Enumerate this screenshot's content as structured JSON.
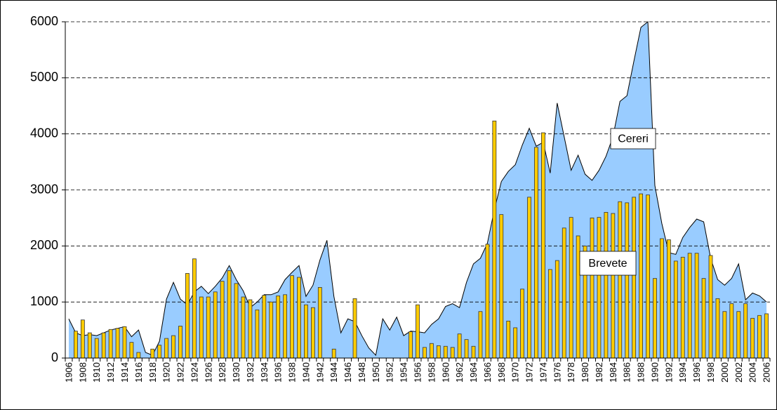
{
  "chart_data": {
    "type": "combo",
    "categories": [
      "1906",
      null,
      "1908",
      null,
      "1910",
      null,
      "1912",
      null,
      "1914",
      null,
      "1916",
      null,
      "1918",
      null,
      "1920",
      null,
      "1922",
      null,
      "1924",
      null,
      "1926",
      null,
      "1928",
      null,
      "1930",
      null,
      "1932",
      null,
      "1934",
      null,
      "1936",
      null,
      "1938",
      null,
      "1940",
      null,
      "1942",
      null,
      "1944",
      null,
      "1946",
      null,
      "1948",
      null,
      "1950",
      null,
      "1952",
      null,
      "1954",
      null,
      "1956",
      null,
      "1958",
      null,
      "1960",
      null,
      "1962",
      null,
      "1964",
      null,
      "1966",
      null,
      "1968",
      null,
      "1970",
      null,
      "1972",
      null,
      "1974",
      null,
      "1976",
      null,
      "1978",
      null,
      "1980",
      null,
      "1982",
      null,
      "1984",
      null,
      "1986",
      null,
      "1988",
      null,
      "1990",
      null,
      "1992",
      null,
      "1994",
      null,
      "1996",
      null,
      "1998",
      null,
      "2000",
      null,
      "2002",
      null,
      "2004",
      null,
      "2006"
    ],
    "series": [
      {
        "name": "Cereri",
        "type": "area",
        "color": "#99ccff",
        "values": [
          700,
          450,
          400,
          420,
          400,
          450,
          500,
          530,
          560,
          380,
          500,
          100,
          50,
          300,
          1050,
          1350,
          1050,
          950,
          1180,
          1280,
          1150,
          1280,
          1430,
          1650,
          1400,
          1200,
          900,
          1000,
          1130,
          1130,
          1180,
          1400,
          1530,
          1650,
          1100,
          1300,
          1750,
          2100,
          1100,
          450,
          700,
          650,
          400,
          180,
          50,
          700,
          500,
          730,
          400,
          480,
          470,
          450,
          600,
          700,
          920,
          970,
          900,
          1350,
          1680,
          1780,
          2050,
          2650,
          3150,
          3330,
          3450,
          3800,
          4100,
          3780,
          3850,
          3300,
          4550,
          3950,
          3350,
          3620,
          3280,
          3170,
          3350,
          3600,
          3950,
          4580,
          4680,
          5300,
          5900,
          6000,
          3080,
          2400,
          1880,
          1850,
          2150,
          2330,
          2480,
          2430,
          1780,
          1400,
          1300,
          1420,
          1680,
          1040,
          1160,
          1110,
          1000
        ]
      },
      {
        "name": "Brevete",
        "type": "bar",
        "color": "#ffcc00",
        "values": [
          0,
          480,
          680,
          450,
          350,
          450,
          510,
          530,
          560,
          280,
          100,
          0,
          160,
          230,
          350,
          400,
          570,
          1510,
          1770,
          1090,
          1090,
          1180,
          1370,
          1560,
          1330,
          1090,
          1040,
          860,
          1120,
          1000,
          1110,
          1130,
          1470,
          1440,
          950,
          900,
          1260,
          0,
          160,
          0,
          0,
          1060,
          0,
          0,
          0,
          0,
          0,
          0,
          0,
          470,
          950,
          190,
          260,
          220,
          210,
          190,
          430,
          330,
          210,
          830,
          2030,
          4230,
          2560,
          660,
          540,
          1230,
          2870,
          3760,
          4020,
          1580,
          1740,
          2320,
          2510,
          2180,
          2000,
          2500,
          2510,
          2600,
          2580,
          2790,
          2770,
          2870,
          2930,
          2910,
          1420,
          2130,
          2110,
          1730,
          1800,
          1870,
          1870,
          1420,
          1830,
          1060,
          830,
          970,
          830,
          970,
          710,
          760,
          790
        ]
      }
    ],
    "ylim": [
      0,
      6000
    ],
    "yticks": [
      0,
      1000,
      2000,
      3000,
      4000,
      5000,
      6000
    ],
    "grid": true
  }
}
